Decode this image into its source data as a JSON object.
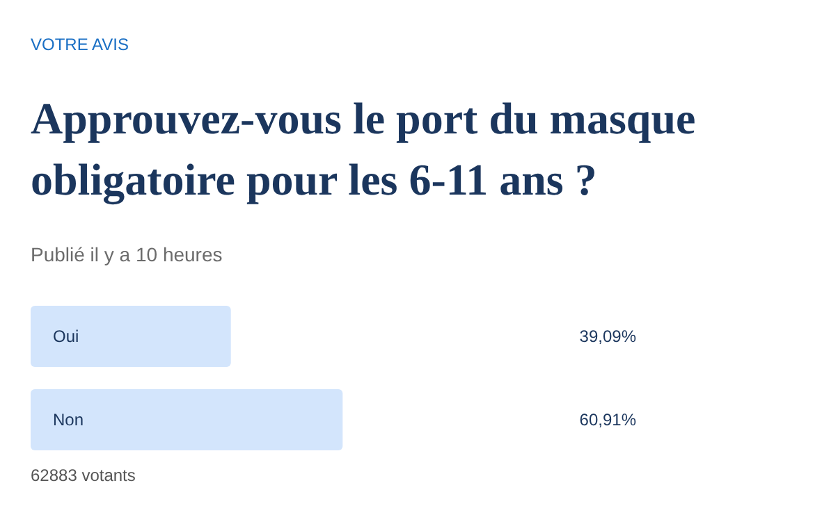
{
  "chart_data": {
    "type": "bar",
    "orientation": "horizontal",
    "title": "Approuvez-vous le port du masque obligatoire pour les 6-11 ans ?",
    "subtitle": "Publié il y a 10 heures",
    "annotations": [
      "VOTRE AVIS",
      "62883 votants"
    ],
    "categories": [
      "Oui",
      "Non"
    ],
    "values": [
      39.09,
      60.91
    ],
    "value_labels": [
      "39,09%",
      "60,91%"
    ],
    "color": "#d3e5fc"
  }
}
